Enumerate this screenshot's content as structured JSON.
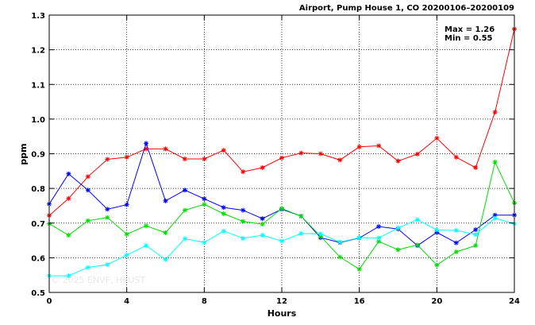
{
  "chart_data": {
    "type": "line",
    "title": "Airport, Pump House 1, CO 20200106–20200109",
    "xlabel": "Hours",
    "ylabel": "ppm",
    "xlim": [
      0,
      24
    ],
    "ylim": [
      0.5,
      1.3
    ],
    "x_ticks": [
      0,
      4,
      8,
      12,
      16,
      20,
      24
    ],
    "y_ticks": [
      0.5,
      0.6,
      0.7,
      0.8,
      0.9,
      1.0,
      1.1,
      1.2,
      1.3
    ],
    "y_tick_labels": [
      "0.5",
      "0.6",
      "0.7",
      "0.8",
      "0.9",
      "1.0",
      "1.1",
      "1.2",
      "1.3"
    ],
    "grid": true,
    "annotations": {
      "max_text": "Max = 1.26",
      "min_text": "Min = 0.55"
    },
    "watermark": "© 2025 ENVF, HKUST",
    "x": [
      0,
      1,
      2,
      3,
      4,
      5,
      6,
      7,
      8,
      9,
      10,
      11,
      12,
      13,
      14,
      15,
      16,
      17,
      18,
      19,
      20,
      21,
      22,
      23,
      24
    ],
    "series": [
      {
        "color": "#ff0000",
        "values": [
          0.722,
          0.771,
          0.834,
          0.884,
          0.89,
          0.914,
          0.914,
          0.885,
          0.885,
          0.91,
          0.848,
          0.86,
          0.888,
          0.902,
          0.9,
          0.882,
          0.92,
          0.923,
          0.879,
          0.899,
          0.945,
          0.89,
          0.86,
          1.02,
          1.26
        ]
      },
      {
        "color": "#0000ff",
        "values": [
          0.755,
          0.842,
          0.795,
          0.74,
          0.753,
          0.93,
          0.764,
          0.795,
          0.77,
          0.745,
          0.737,
          0.713,
          0.74,
          0.72,
          0.658,
          0.644,
          0.657,
          0.69,
          0.683,
          0.635,
          0.673,
          0.643,
          0.681,
          0.723,
          0.723
        ]
      },
      {
        "color": "#00dd00",
        "values": [
          0.698,
          0.665,
          0.707,
          0.716,
          0.668,
          0.692,
          0.672,
          0.737,
          0.754,
          0.727,
          0.705,
          0.697,
          0.742,
          0.72,
          0.662,
          0.602,
          0.567,
          0.647,
          0.623,
          0.637,
          0.579,
          0.617,
          0.635,
          0.876,
          0.758
        ]
      },
      {
        "color": "#00ffff",
        "values": [
          0.548,
          0.548,
          0.572,
          0.58,
          0.608,
          0.635,
          0.595,
          0.655,
          0.644,
          0.677,
          0.656,
          0.665,
          0.648,
          0.67,
          0.669,
          0.645,
          0.658,
          0.657,
          0.686,
          0.71,
          0.68,
          0.679,
          0.667,
          0.714,
          0.698
        ]
      }
    ]
  }
}
